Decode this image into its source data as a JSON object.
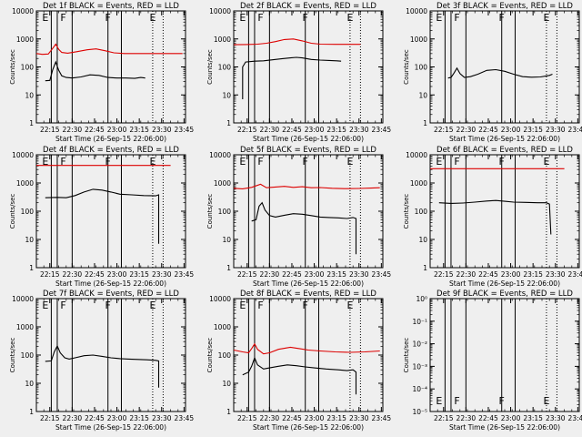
{
  "figure": {
    "background": "#efefef",
    "colors": {
      "black_series": "#000000",
      "red_series": "#dd0000",
      "frame": "#000000"
    }
  },
  "common": {
    "xlabel": "Start Time (26-Sep-15 22:06:00)",
    "ylabel": "Counts/sec",
    "xticks": [
      "22:15",
      "22:30",
      "22:45",
      "23:00",
      "23:15",
      "23:30",
      "23:45"
    ],
    "ytick_labels": [
      "1",
      "10",
      "100",
      "1000",
      "10000"
    ],
    "ytick_labels_empty": [
      "10⁰",
      "10⁻¹",
      "10⁻²",
      "10⁻³",
      "10⁻⁴",
      "10⁻⁵"
    ],
    "event_markers": [
      {
        "label": "E",
        "t": "22:12"
      },
      {
        "label": "F",
        "t": "22:24"
      },
      {
        "label": "F",
        "t": "22:54"
      },
      {
        "label": "E",
        "t": "23:24"
      }
    ],
    "solid_lines": [
      "22:16",
      "22:20",
      "22:30",
      "22:54",
      "23:03"
    ],
    "dotted_lines": [
      "23:24",
      "23:31"
    ]
  },
  "chart_data": [
    {
      "type": "line",
      "title": "Det 1f BLACK = Events, RED = LLD",
      "yscale": "log",
      "ylim": [
        1,
        10000
      ],
      "xlim": [
        "22:06",
        "23:46"
      ],
      "series": [
        {
          "name": "Events",
          "color": "#000000",
          "points": [
            [
              "22:12",
              32
            ],
            [
              "22:15",
              33
            ],
            [
              "22:17",
              80
            ],
            [
              "22:19",
              150
            ],
            [
              "22:21",
              75
            ],
            [
              "22:23",
              48
            ],
            [
              "22:26",
              42
            ],
            [
              "22:30",
              40
            ],
            [
              "22:36",
              44
            ],
            [
              "22:42",
              52
            ],
            [
              "22:48",
              50
            ],
            [
              "22:54",
              42
            ],
            [
              "23:00",
              40
            ],
            [
              "23:06",
              40
            ],
            [
              "23:12",
              39
            ],
            [
              "23:16",
              42
            ],
            [
              "23:19",
              40
            ]
          ]
        },
        {
          "name": "LLD",
          "color": "#dd0000",
          "points": [
            [
              "22:06",
              300
            ],
            [
              "22:10",
              280
            ],
            [
              "22:14",
              290
            ],
            [
              "22:17",
              460
            ],
            [
              "22:19",
              650
            ],
            [
              "22:21",
              420
            ],
            [
              "22:23",
              330
            ],
            [
              "22:27",
              310
            ],
            [
              "22:33",
              350
            ],
            [
              "22:40",
              410
            ],
            [
              "22:46",
              440
            ],
            [
              "22:52",
              380
            ],
            [
              "22:58",
              320
            ],
            [
              "23:05",
              300
            ],
            [
              "23:15",
              300
            ],
            [
              "23:25",
              300
            ],
            [
              "23:35",
              300
            ],
            [
              "23:44",
              300
            ]
          ]
        }
      ]
    },
    {
      "type": "line",
      "title": "Det 2f BLACK = Events, RED = LLD",
      "yscale": "log",
      "ylim": [
        1,
        10000
      ],
      "xlim": [
        "22:06",
        "23:46"
      ],
      "series": [
        {
          "name": "Events",
          "color": "#000000",
          "points": [
            [
              "22:12",
              7
            ],
            [
              "22:12",
              100
            ],
            [
              "22:14",
              150
            ],
            [
              "22:20",
              160
            ],
            [
              "22:26",
              165
            ],
            [
              "22:32",
              180
            ],
            [
              "22:38",
              195
            ],
            [
              "22:44",
              210
            ],
            [
              "22:48",
              220
            ],
            [
              "22:52",
              210
            ],
            [
              "22:58",
              185
            ],
            [
              "23:04",
              175
            ],
            [
              "23:10",
              170
            ],
            [
              "23:15",
              165
            ],
            [
              "23:18",
              160
            ]
          ]
        },
        {
          "name": "LLD",
          "color": "#dd0000",
          "points": [
            [
              "22:06",
              620
            ],
            [
              "22:14",
              630
            ],
            [
              "22:22",
              650
            ],
            [
              "22:28",
              700
            ],
            [
              "22:34",
              800
            ],
            [
              "22:40",
              950
            ],
            [
              "22:46",
              1000
            ],
            [
              "22:52",
              850
            ],
            [
              "22:58",
              700
            ],
            [
              "23:04",
              650
            ],
            [
              "23:14",
              640
            ],
            [
              "23:26",
              640
            ],
            [
              "23:31",
              640
            ]
          ]
        }
      ]
    },
    {
      "type": "line",
      "title": "Det 3f BLACK = Events, RED = LLD",
      "yscale": "log",
      "ylim": [
        1,
        10000
      ],
      "xlim": [
        "22:06",
        "23:46"
      ],
      "series": [
        {
          "name": "Events",
          "color": "#000000",
          "points": [
            [
              "22:18",
              40
            ],
            [
              "22:20",
              42
            ],
            [
              "22:22",
              60
            ],
            [
              "22:24",
              90
            ],
            [
              "22:26",
              58
            ],
            [
              "22:29",
              42
            ],
            [
              "22:33",
              45
            ],
            [
              "22:38",
              55
            ],
            [
              "22:44",
              75
            ],
            [
              "22:50",
              80
            ],
            [
              "22:56",
              70
            ],
            [
              "23:02",
              55
            ],
            [
              "23:08",
              45
            ],
            [
              "23:14",
              43
            ],
            [
              "23:20",
              44
            ],
            [
              "23:26",
              50
            ],
            [
              "23:28",
              55
            ]
          ]
        }
      ]
    },
    {
      "type": "line",
      "title": "Det 4f BLACK = Events, RED = LLD",
      "yscale": "log",
      "ylim": [
        1,
        10000
      ],
      "xlim": [
        "22:06",
        "23:46"
      ],
      "series": [
        {
          "name": "Events",
          "color": "#000000",
          "points": [
            [
              "22:12",
              300
            ],
            [
              "22:20",
              310
            ],
            [
              "22:26",
              300
            ],
            [
              "22:32",
              360
            ],
            [
              "22:38",
              480
            ],
            [
              "22:44",
              600
            ],
            [
              "22:50",
              560
            ],
            [
              "22:56",
              480
            ],
            [
              "23:02",
              400
            ],
            [
              "23:10",
              380
            ],
            [
              "23:18",
              360
            ],
            [
              "23:26",
              350
            ],
            [
              "23:28",
              380
            ],
            [
              "23:28",
              7
            ]
          ]
        },
        {
          "name": "LLD",
          "color": "#dd0000",
          "points": [
            [
              "22:06",
              4200
            ],
            [
              "22:20",
              4200
            ],
            [
              "22:40",
              4200
            ],
            [
              "23:00",
              4200
            ],
            [
              "23:20",
              4200
            ],
            [
              "23:36",
              4200
            ]
          ]
        }
      ]
    },
    {
      "type": "line",
      "title": "Det 5f BLACK = Events, RED = LLD",
      "yscale": "log",
      "ylim": [
        1,
        10000
      ],
      "xlim": [
        "22:06",
        "23:46"
      ],
      "series": [
        {
          "name": "Events",
          "color": "#000000",
          "points": [
            [
              "22:18",
              45
            ],
            [
              "22:21",
              50
            ],
            [
              "22:23",
              150
            ],
            [
              "22:25",
              200
            ],
            [
              "22:27",
              110
            ],
            [
              "22:30",
              70
            ],
            [
              "22:34",
              62
            ],
            [
              "22:40",
              72
            ],
            [
              "22:46",
              82
            ],
            [
              "22:52",
              78
            ],
            [
              "22:58",
              70
            ],
            [
              "23:04",
              62
            ],
            [
              "23:10",
              60
            ],
            [
              "23:16",
              58
            ],
            [
              "23:22",
              55
            ],
            [
              "23:26",
              60
            ],
            [
              "23:28",
              55
            ],
            [
              "23:28",
              3
            ]
          ]
        },
        {
          "name": "LLD",
          "color": "#dd0000",
          "points": [
            [
              "22:06",
              650
            ],
            [
              "22:12",
              620
            ],
            [
              "22:18",
              700
            ],
            [
              "22:24",
              900
            ],
            [
              "22:28",
              680
            ],
            [
              "22:34",
              720
            ],
            [
              "22:40",
              760
            ],
            [
              "22:46",
              700
            ],
            [
              "22:52",
              740
            ],
            [
              "22:58",
              680
            ],
            [
              "23:04",
              690
            ],
            [
              "23:12",
              650
            ],
            [
              "23:20",
              630
            ],
            [
              "23:30",
              640
            ],
            [
              "23:38",
              660
            ],
            [
              "23:44",
              680
            ]
          ]
        }
      ]
    },
    {
      "type": "line",
      "title": "Det 6f BLACK = Events, RED = LLD",
      "yscale": "log",
      "ylim": [
        1,
        10000
      ],
      "xlim": [
        "22:06",
        "23:46"
      ],
      "series": [
        {
          "name": "Events",
          "color": "#000000",
          "points": [
            [
              "22:12",
              200
            ],
            [
              "22:20",
              190
            ],
            [
              "22:28",
              195
            ],
            [
              "22:36",
              210
            ],
            [
              "22:44",
              230
            ],
            [
              "22:50",
              240
            ],
            [
              "22:56",
              225
            ],
            [
              "23:02",
              210
            ],
            [
              "23:10",
              205
            ],
            [
              "23:18",
              200
            ],
            [
              "23:24",
              200
            ],
            [
              "23:26",
              180
            ],
            [
              "23:27",
              15
            ]
          ]
        },
        {
          "name": "LLD",
          "color": "#dd0000",
          "points": [
            [
              "22:06",
              3200
            ],
            [
              "22:20",
              3200
            ],
            [
              "22:40",
              3200
            ],
            [
              "23:00",
              3200
            ],
            [
              "23:20",
              3200
            ],
            [
              "23:36",
              3200
            ]
          ]
        }
      ]
    },
    {
      "type": "line",
      "title": "Det 7f BLACK = Events, RED = LLD",
      "yscale": "log",
      "ylim": [
        1,
        10000
      ],
      "xlim": [
        "22:06",
        "23:46"
      ],
      "series": [
        {
          "name": "Events",
          "color": "#000000",
          "points": [
            [
              "22:12",
              60
            ],
            [
              "22:16",
              62
            ],
            [
              "22:18",
              130
            ],
            [
              "22:20",
              210
            ],
            [
              "22:22",
              120
            ],
            [
              "22:25",
              80
            ],
            [
              "22:28",
              72
            ],
            [
              "22:32",
              80
            ],
            [
              "22:38",
              95
            ],
            [
              "22:44",
              100
            ],
            [
              "22:50",
              90
            ],
            [
              "22:56",
              80
            ],
            [
              "23:02",
              75
            ],
            [
              "23:08",
              72
            ],
            [
              "23:14",
              70
            ],
            [
              "23:20",
              68
            ],
            [
              "23:26",
              65
            ],
            [
              "23:28",
              62
            ],
            [
              "23:28",
              7
            ]
          ]
        }
      ]
    },
    {
      "type": "line",
      "title": "Det 8f BLACK = Events, RED = LLD",
      "yscale": "log",
      "ylim": [
        1,
        10000
      ],
      "xlim": [
        "22:06",
        "23:46"
      ],
      "series": [
        {
          "name": "Events",
          "color": "#000000",
          "points": [
            [
              "22:12",
              20
            ],
            [
              "22:16",
              25
            ],
            [
              "22:18",
              40
            ],
            [
              "22:20",
              80
            ],
            [
              "22:22",
              45
            ],
            [
              "22:26",
              32
            ],
            [
              "22:30",
              35
            ],
            [
              "22:36",
              40
            ],
            [
              "22:42",
              45
            ],
            [
              "22:48",
              42
            ],
            [
              "22:54",
              38
            ],
            [
              "23:00",
              35
            ],
            [
              "23:08",
              32
            ],
            [
              "23:16",
              30
            ],
            [
              "23:22",
              28
            ],
            [
              "23:26",
              30
            ],
            [
              "23:28",
              25
            ],
            [
              "23:28",
              4
            ]
          ]
        },
        {
          "name": "LLD",
          "color": "#dd0000",
          "points": [
            [
              "22:06",
              150
            ],
            [
              "22:12",
              130
            ],
            [
              "22:16",
              120
            ],
            [
              "22:18",
              170
            ],
            [
              "22:20",
              250
            ],
            [
              "22:22",
              160
            ],
            [
              "22:26",
              110
            ],
            [
              "22:30",
              120
            ],
            [
              "22:36",
              160
            ],
            [
              "22:44",
              190
            ],
            [
              "22:50",
              170
            ],
            [
              "22:56",
              150
            ],
            [
              "23:04",
              140
            ],
            [
              "23:14",
              130
            ],
            [
              "23:24",
              125
            ],
            [
              "23:34",
              130
            ],
            [
              "23:44",
              140
            ]
          ]
        }
      ]
    },
    {
      "type": "line",
      "title": "Det 9f BLACK = Events, RED = LLD",
      "yscale": "log",
      "ylim": [
        1e-05,
        1
      ],
      "xlim": [
        "22:06",
        "23:46"
      ],
      "series": []
    }
  ]
}
